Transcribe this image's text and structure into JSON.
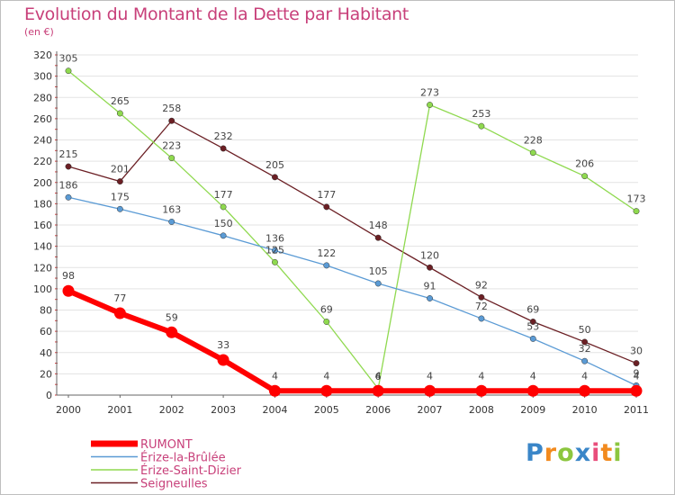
{
  "header": {
    "title": "Evolution du Montant de la Dette par Habitant",
    "subtitle": "(en €)"
  },
  "logo": {
    "text": "Proxiti"
  },
  "chart_data": {
    "type": "line",
    "title": "Evolution du Montant de la Dette par Habitant",
    "subtitle": "(en €)",
    "xlabel": "",
    "ylabel": "",
    "x": [
      "2000",
      "2001",
      "2002",
      "2003",
      "2004",
      "2005",
      "2006",
      "2007",
      "2008",
      "2009",
      "2010",
      "2011"
    ],
    "ylim": [
      0,
      320
    ],
    "yticks": [
      0,
      20,
      40,
      60,
      80,
      100,
      120,
      140,
      160,
      180,
      200,
      220,
      240,
      260,
      280,
      300,
      320
    ],
    "grid": "horizontal",
    "legend_position": "bottom-left",
    "series": [
      {
        "name": "Seigneulles",
        "color": "#6b1f24",
        "values": [
          215,
          201,
          258,
          232,
          205,
          177,
          148,
          120,
          92,
          69,
          50,
          30
        ]
      },
      {
        "name": "Érize-Saint-Dizier",
        "color": "#8fd94f",
        "values": [
          305,
          265,
          223,
          177,
          125,
          69,
          6,
          273,
          253,
          228,
          206,
          173
        ]
      },
      {
        "name": "Érize-la-Brûlée",
        "color": "#5b9bd5",
        "values": [
          186,
          175,
          163,
          150,
          136,
          122,
          105,
          91,
          72,
          53,
          32,
          9
        ]
      },
      {
        "name": "RUMONT",
        "color": "#ff0000",
        "values": [
          98,
          77,
          59,
          33,
          4,
          4,
          4,
          4,
          4,
          4,
          4,
          4
        ]
      }
    ]
  }
}
